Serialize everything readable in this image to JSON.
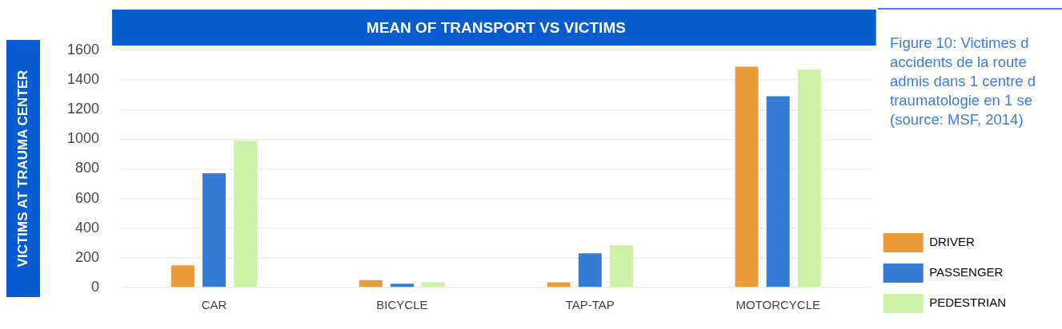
{
  "chart_data": {
    "type": "bar",
    "title": "MEAN OF TRANSPORT VS VICTIMS",
    "ylabel": "VICTIMS AT TRAUMA CENTER",
    "categories": [
      "CAR",
      "BICYCLE",
      "TAP-TAP",
      "MOTORCYCLE"
    ],
    "series": [
      {
        "name": "DRIVER",
        "color": "#ea9a3b",
        "values": [
          150,
          50,
          35,
          1490
        ]
      },
      {
        "name": "PASSENGER",
        "color": "#357cd6",
        "values": [
          770,
          25,
          230,
          1290
        ]
      },
      {
        "name": "PEDESTRIAN",
        "color": "#cff0a7",
        "values": [
          990,
          35,
          285,
          1470
        ]
      }
    ],
    "ylim": [
      0,
      1600
    ],
    "yticks": [
      0,
      200,
      400,
      600,
      800,
      1000,
      1200,
      1400,
      1600
    ],
    "grid": "y",
    "legend": "right",
    "annotations": [
      "Figure 10: Victimes d",
      "accidents de la route",
      "admis dans 1 centre d",
      "traumatologie en 1 se",
      "(source: MSF, 2014)"
    ]
  }
}
